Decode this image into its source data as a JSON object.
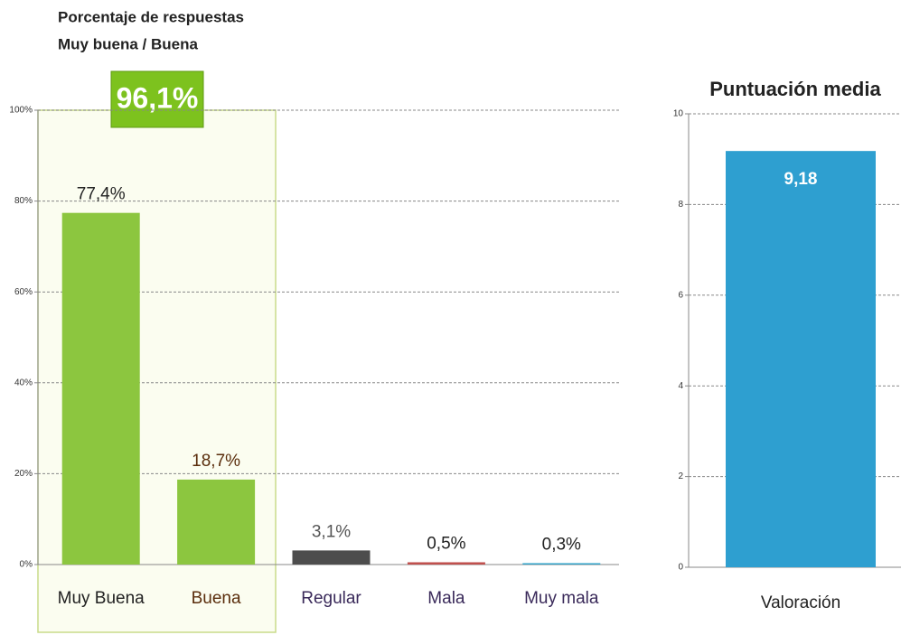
{
  "chart_data": [
    {
      "type": "bar",
      "title": "Porcentaje de respuestas",
      "subtitle": "Muy buena / Buena",
      "annotation": "96,1%",
      "categories": [
        "Muy Buena",
        "Buena",
        "Regular",
        "Mala",
        "Muy mala"
      ],
      "values": [
        77.4,
        18.7,
        3.1,
        0.5,
        0.3
      ],
      "value_labels": [
        "77,4%",
        "18,7%",
        "3,1%",
        "0,5%",
        "0,3%"
      ],
      "colors": [
        "#8cc63f",
        "#8cc63f",
        "#4d4d4d",
        "#c0504d",
        "#31a2c8"
      ],
      "ylim": [
        0,
        100
      ],
      "yticks": [
        {
          "value": 0,
          "label": "0%"
        },
        {
          "value": 20,
          "label": "20%"
        },
        {
          "value": 40,
          "label": "40%"
        },
        {
          "value": 60,
          "label": "60%"
        },
        {
          "value": 80,
          "label": "80%"
        },
        {
          "value": 100,
          "label": "100%"
        }
      ],
      "grid": true
    },
    {
      "type": "bar",
      "title": "Puntuación media",
      "categories": [
        "Valoración"
      ],
      "values": [
        9.18
      ],
      "value_labels": [
        "9,18"
      ],
      "colors": [
        "#2e9fd0"
      ],
      "ylim": [
        0,
        10
      ],
      "yticks": [
        0,
        2,
        4,
        6,
        8,
        10
      ],
      "grid": true
    }
  ]
}
